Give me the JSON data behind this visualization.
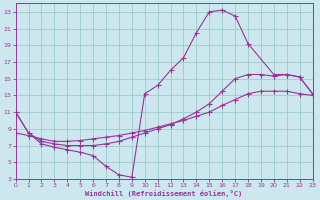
{
  "xlabel": "Windchill (Refroidissement éolien,°C)",
  "bg_color": "#cce8ee",
  "grid_color": "#99cccc",
  "line_color": "#993399",
  "xlim": [
    0,
    23
  ],
  "ylim": [
    3,
    24
  ],
  "xticks": [
    0,
    1,
    2,
    3,
    4,
    5,
    6,
    7,
    8,
    9,
    10,
    11,
    12,
    13,
    14,
    15,
    16,
    17,
    18,
    19,
    20,
    21,
    22,
    23
  ],
  "yticks": [
    3,
    5,
    7,
    9,
    11,
    13,
    15,
    17,
    19,
    21,
    23
  ],
  "curve1_x": [
    0,
    1,
    2,
    3,
    4,
    5,
    6,
    7,
    8,
    9,
    10,
    11,
    12,
    13,
    14,
    15,
    16,
    17,
    18,
    20,
    21,
    22,
    23
  ],
  "curve1_y": [
    11,
    8.5,
    7.2,
    6.8,
    6.5,
    6.2,
    5.8,
    4.5,
    3.5,
    3.2,
    13.2,
    14.2,
    16.0,
    17.5,
    20.5,
    23.0,
    23.2,
    22.5,
    19.2,
    15.5,
    15.5,
    15.2,
    13.2
  ],
  "curve2_x": [
    0,
    1,
    2,
    3,
    4,
    5,
    6,
    7,
    8,
    9,
    10,
    11,
    12,
    13,
    14,
    15,
    16,
    17,
    18,
    19,
    20,
    21,
    22,
    23
  ],
  "curve2_y": [
    11,
    8.5,
    7.5,
    7.2,
    7.0,
    7.0,
    7.0,
    7.2,
    7.5,
    8.0,
    8.5,
    9.0,
    9.5,
    10.2,
    11.0,
    12.0,
    13.5,
    15.0,
    15.5,
    15.5,
    15.3,
    15.5,
    15.2,
    13.2
  ],
  "curve3_x": [
    0,
    1,
    2,
    3,
    4,
    5,
    6,
    7,
    8,
    9,
    10,
    11,
    12,
    13,
    14,
    15,
    16,
    17,
    18,
    19,
    20,
    21,
    22,
    23
  ],
  "curve3_y": [
    8.5,
    8.2,
    7.8,
    7.5,
    7.5,
    7.6,
    7.8,
    8.0,
    8.2,
    8.5,
    8.8,
    9.2,
    9.6,
    10.0,
    10.5,
    11.0,
    11.8,
    12.5,
    13.2,
    13.5,
    13.5,
    13.5,
    13.2,
    13.0
  ]
}
